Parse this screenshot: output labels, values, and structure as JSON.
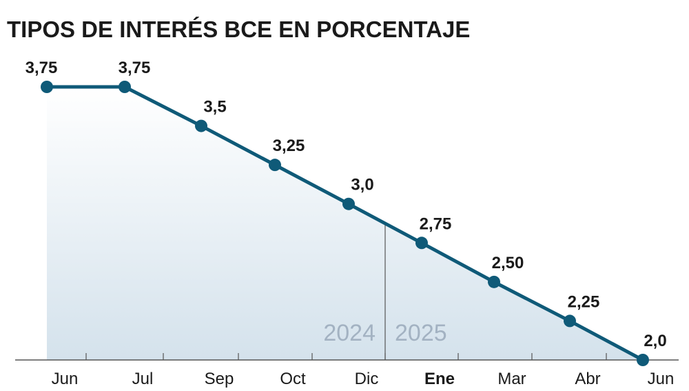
{
  "title": "TIPOS DE INTERÉS BCE EN PORCENTAJE",
  "chart_data": {
    "type": "area",
    "categories": [
      "Jun",
      "Jul",
      "Sep",
      "Oct",
      "Dic",
      "Ene",
      "Mar",
      "Abr",
      "Jun"
    ],
    "values": [
      3.75,
      3.75,
      3.5,
      3.25,
      3.0,
      2.75,
      2.5,
      2.25,
      2.0
    ],
    "value_labels": [
      "3,75",
      "3,75",
      "3,5",
      "3,25",
      "3,0",
      "2,75",
      "2,50",
      "2,25",
      "2,0"
    ],
    "year_labels": [
      "2024",
      "2025"
    ],
    "year_boundary_between": [
      "Dic",
      "Ene"
    ],
    "bold_categories": [
      "Ene"
    ],
    "ylim": [
      2.0,
      3.75
    ],
    "grid": false,
    "legend": "none",
    "colors": {
      "line": "#0f5a78",
      "marker": "#0f5a78",
      "fill_top": "#ffffff",
      "fill_bottom": "#d4e2ec",
      "axis": "#555555",
      "year_text": "#a3b2c2"
    }
  }
}
